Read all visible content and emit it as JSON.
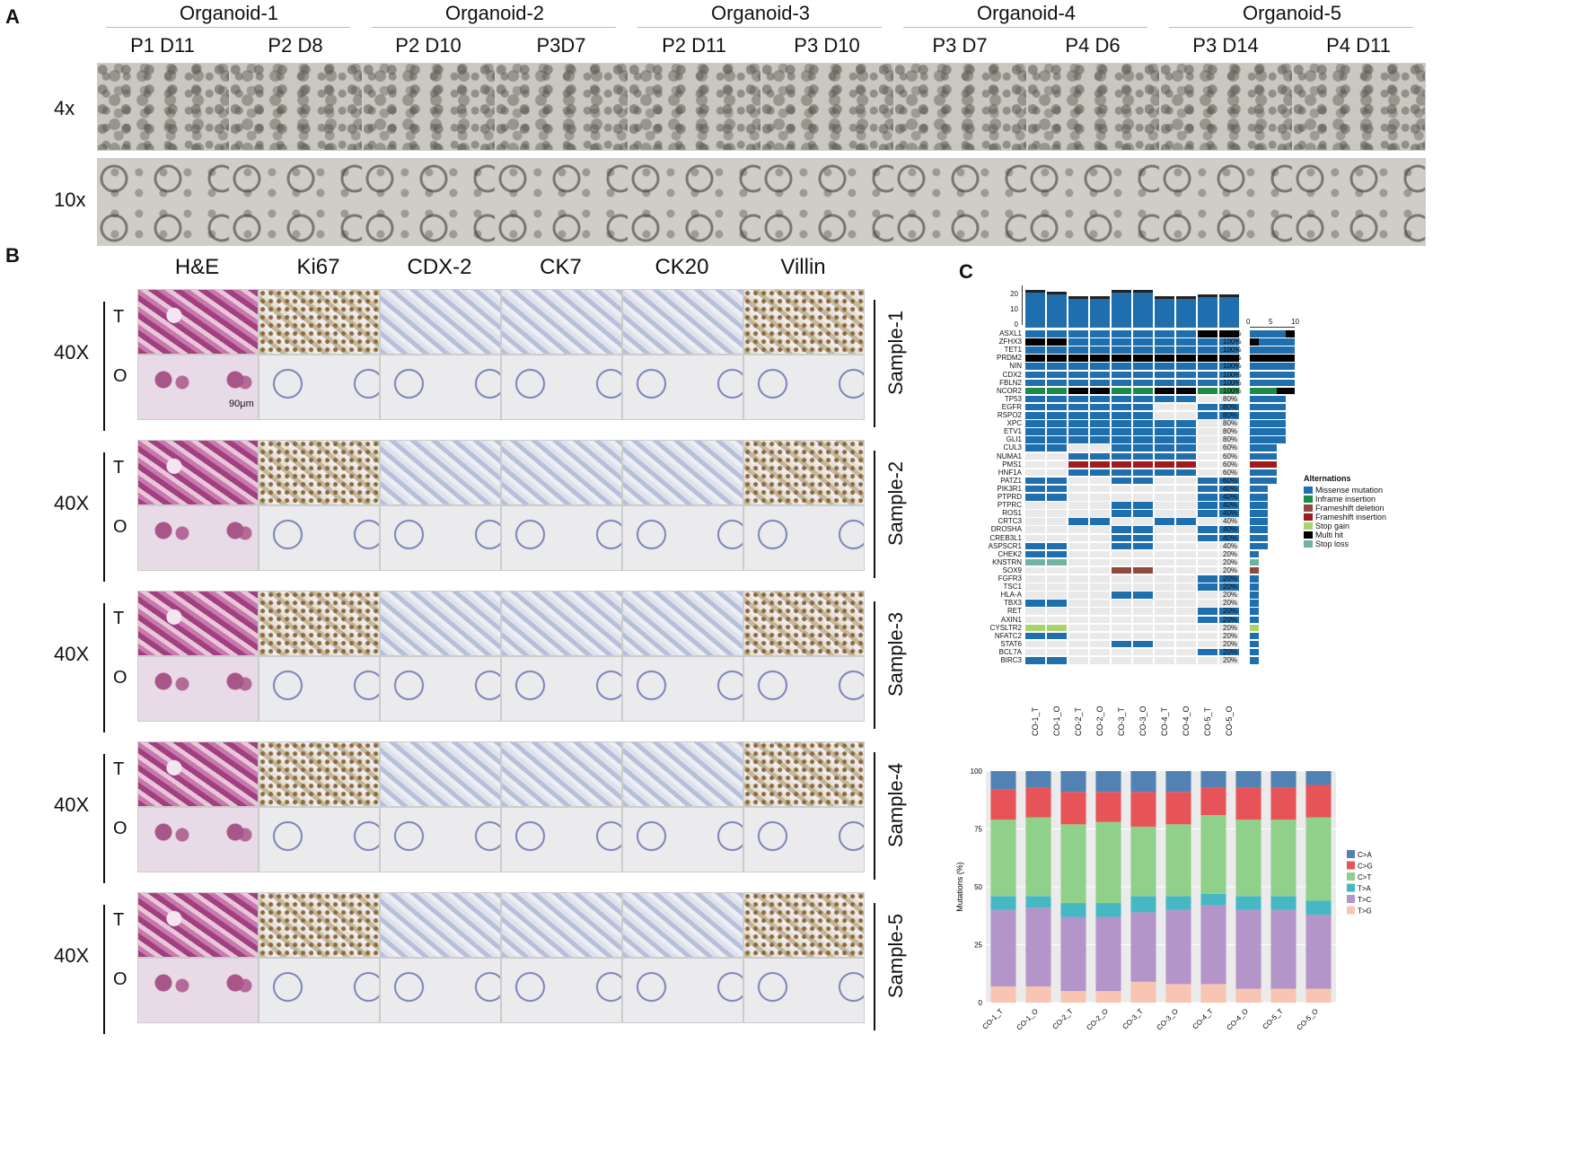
{
  "panelA": {
    "letter": "A",
    "groups": [
      "Organoid-1",
      "Organoid-2",
      "Organoid-3",
      "Organoid-4",
      "Organoid-5"
    ],
    "passages": [
      "P1 D11",
      "P2 D8",
      "P2 D10",
      "P3D7",
      "P2 D11",
      "P3 D10",
      "P3 D7",
      "P4 D6",
      "P3 D14",
      "P4 D11"
    ],
    "rows": [
      "4x",
      "10x"
    ]
  },
  "panelB": {
    "letter": "B",
    "stains": [
      "H&E",
      "Ki67",
      "CDX-2",
      "CK7",
      "CK20",
      "Villin"
    ],
    "magnification": "40X",
    "tissue": [
      "T",
      "O"
    ],
    "samples": [
      "Sample-1",
      "Sample-2",
      "Sample-3",
      "Sample-4",
      "Sample-5"
    ],
    "scalebar": "90μm"
  },
  "panelC": {
    "letter": "C",
    "legend_title": "Alternations",
    "legend": [
      {
        "label": "Missense mutation",
        "color": "#1f6fae"
      },
      {
        "label": "Inframe insertion",
        "color": "#1e8a4a"
      },
      {
        "label": "Frameshift deletion",
        "color": "#8f4a3d"
      },
      {
        "label": "Frameshift insertion",
        "color": "#a11a1e"
      },
      {
        "label": "Stop gain",
        "color": "#a8d46b"
      },
      {
        "label": "Multi hit",
        "color": "#000000"
      },
      {
        "label": "Stop loss",
        "color": "#6fb3a2"
      }
    ],
    "samples": [
      "CO-1_T",
      "CO-1_O",
      "CO-2_T",
      "CO-2_O",
      "CO-3_T",
      "CO-3_O",
      "CO-4_T",
      "CO-4_O",
      "CO-5_T",
      "CO-5_O"
    ],
    "tmb_axis_ticks": [
      "0",
      "10",
      "20"
    ],
    "tmb": [
      23,
      22,
      19,
      19,
      23,
      23,
      19,
      19,
      20,
      20
    ],
    "freq_axis_ticks": [
      "0",
      "5",
      "10"
    ],
    "genes": [
      {
        "g": "ASXL1",
        "p": "100%",
        "r": "MMMMMMMMXX"
      },
      {
        "g": "ZFHX3",
        "p": "100%",
        "r": "XXMMMMMMMM"
      },
      {
        "g": "TET1",
        "p": "100%",
        "r": "MMMMMMMMMM"
      },
      {
        "g": "PRDM2",
        "p": "100%",
        "r": "XXXXXXXXXX"
      },
      {
        "g": "NIN",
        "p": "100%",
        "r": "MMMMMMMMMM"
      },
      {
        "g": "CDX2",
        "p": "100%",
        "r": "MMMMMMMMMM"
      },
      {
        "g": "FBLN2",
        "p": "100%",
        "r": "MMMMMMMMMM"
      },
      {
        "g": "NCOR2",
        "p": "100%",
        "r": "IIXXIIXXII"
      },
      {
        "g": "TP53",
        "p": "80%",
        "r": "MMMMMMMM.."
      },
      {
        "g": "EGFR",
        "p": "80%",
        "r": "MMMMMM..MM"
      },
      {
        "g": "RSPO2",
        "p": "80%",
        "r": "MMMMMM..MM"
      },
      {
        "g": "XPC",
        "p": "80%",
        "r": "MMMMMMMM.."
      },
      {
        "g": "ETV1",
        "p": "80%",
        "r": "MMMMMMMM.."
      },
      {
        "g": "GLI1",
        "p": "80%",
        "r": "MMMMMMMM.."
      },
      {
        "g": "CUL3",
        "p": "60%",
        "r": "MM..MMMM.."
      },
      {
        "g": "NUMA1",
        "p": "60%",
        "r": "..MMMMMM.."
      },
      {
        "g": "PMS1",
        "p": "60%",
        "r": "..FFFFFF.."
      },
      {
        "g": "HNF1A",
        "p": "60%",
        "r": "..MMMMMM.."
      },
      {
        "g": "PATZ1",
        "p": "60%",
        "r": "MM..MM..MM"
      },
      {
        "g": "PIK3R1",
        "p": "40%",
        "r": "MM......MM"
      },
      {
        "g": "PTPRD",
        "p": "40%",
        "r": "MM......MM"
      },
      {
        "g": "PTPRC",
        "p": "40%",
        "r": "....MM..MM"
      },
      {
        "g": "ROS1",
        "p": "40%",
        "r": "....MM..MM"
      },
      {
        "g": "CRTC3",
        "p": "40%",
        "r": "..MM..MM.."
      },
      {
        "g": "DROSHA",
        "p": "40%",
        "r": "....MM..MM"
      },
      {
        "g": "CREB3L1",
        "p": "40%",
        "r": "....MM..MM"
      },
      {
        "g": "ASPSCR1",
        "p": "40%",
        "r": "MM..MM...."
      },
      {
        "g": "CHEK2",
        "p": "20%",
        "r": "MM........"
      },
      {
        "g": "KNSTRN",
        "p": "20%",
        "r": "SS........"
      },
      {
        "g": "SOX9",
        "p": "20%",
        "r": "....DD...."
      },
      {
        "g": "FGFR3",
        "p": "20%",
        "r": "........MM"
      },
      {
        "g": "TSC1",
        "p": "20%",
        "r": "........MM"
      },
      {
        "g": "HLA-A",
        "p": "20%",
        "r": "....MM...."
      },
      {
        "g": "TBX3",
        "p": "20%",
        "r": "MM........"
      },
      {
        "g": "RET",
        "p": "20%",
        "r": "........MM"
      },
      {
        "g": "AXIN1",
        "p": "20%",
        "r": "........MM"
      },
      {
        "g": "CYSLTR2",
        "p": "20%",
        "r": "GG........"
      },
      {
        "g": "NFATC2",
        "p": "20%",
        "r": "MM........"
      },
      {
        "g": "STAT6",
        "p": "20%",
        "r": "....MM...."
      },
      {
        "g": "BCL7A",
        "p": "20%",
        "r": "........MM"
      },
      {
        "g": "BIRC3",
        "p": "20%",
        "r": "MM........"
      }
    ]
  },
  "chart_data": {
    "type": "bar",
    "stacked": true,
    "categories": [
      "CO-1_T",
      "CO-1_O",
      "CO-2_T",
      "CO-2_O",
      "CO-3_T",
      "CO-3_O",
      "CO-4_T",
      "CO-4_O",
      "CO-5_T",
      "CO-5_O"
    ],
    "ylabel": "Mutations (%)",
    "ylim": [
      0,
      100
    ],
    "yticks": [
      "0",
      "25",
      "50",
      "75",
      "100"
    ],
    "legend_position": "right",
    "series": [
      {
        "name": "T>G",
        "color": "#f9c5b3",
        "values": [
          7,
          7,
          5,
          5,
          9,
          8,
          8,
          6,
          6,
          6
        ]
      },
      {
        "name": "T>C",
        "color": "#b495c9",
        "values": [
          33,
          34,
          32,
          32,
          30,
          32,
          34,
          34,
          34,
          32
        ]
      },
      {
        "name": "T>A",
        "color": "#45b8c4",
        "values": [
          6,
          5,
          6,
          6,
          7,
          6,
          5,
          6,
          6,
          6
        ]
      },
      {
        "name": "C>T",
        "color": "#8fd18a",
        "values": [
          33,
          34,
          34,
          35,
          30,
          31,
          34,
          33,
          33,
          36
        ]
      },
      {
        "name": "C>G",
        "color": "#e6545a",
        "values": [
          13,
          13,
          14,
          13,
          15,
          14,
          12,
          14,
          14,
          14
        ]
      },
      {
        "name": "C>A",
        "color": "#5282b4",
        "values": [
          8,
          7,
          9,
          9,
          9,
          9,
          7,
          7,
          7,
          6
        ]
      }
    ]
  }
}
